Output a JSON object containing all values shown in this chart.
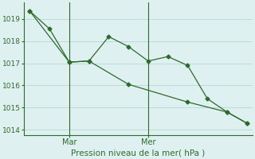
{
  "line1_x": [
    0,
    1,
    2,
    3,
    4,
    5,
    6,
    7,
    8,
    9,
    10,
    11
  ],
  "line1_y": [
    1019.35,
    1018.55,
    1017.05,
    1017.1,
    1018.2,
    1017.75,
    1017.1,
    1017.3,
    1016.9,
    1015.4,
    1014.8,
    1014.3
  ],
  "line2_x": [
    0,
    2,
    3,
    5,
    8,
    10,
    11
  ],
  "line2_y": [
    1019.35,
    1017.05,
    1017.1,
    1016.05,
    1015.25,
    1014.8,
    1014.3
  ],
  "line_color": "#2d6a2d",
  "bg_color": "#dff0f0",
  "grid_color": "#aed4d4",
  "marker": "D",
  "markersize": 2.5,
  "linewidth": 0.9,
  "ylim": [
    1013.75,
    1019.75
  ],
  "yticks": [
    1014,
    1015,
    1016,
    1017,
    1018,
    1019
  ],
  "xlabel": "Pression niveau de la mer( hPa )",
  "mar_x": 2,
  "mer_x": 6,
  "xlim": [
    -0.3,
    11.3
  ],
  "tick_color": "#2d6a2d",
  "label_color": "#2d6a2d",
  "xlabel_fontsize": 7.5,
  "ytick_fontsize": 6.5,
  "xtick_fontsize": 7
}
